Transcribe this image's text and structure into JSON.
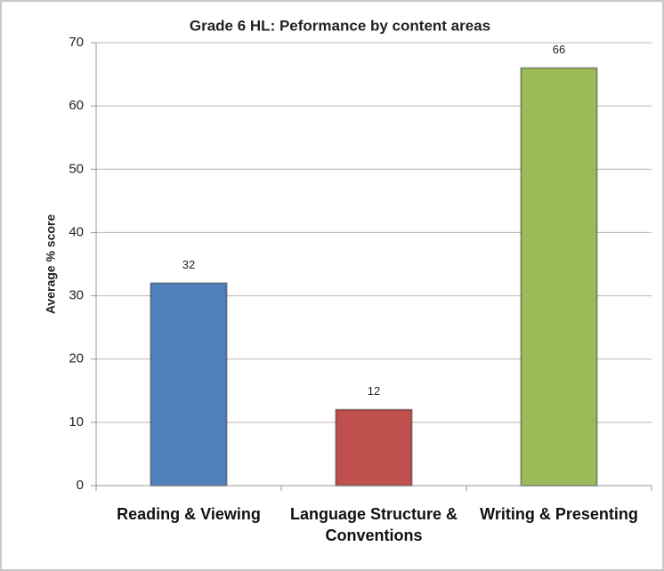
{
  "chart_data": {
    "type": "bar",
    "title": "Grade 6 HL: Peformance by content areas",
    "y_label": "Average % score",
    "categories": [
      "Reading & Viewing",
      "Language Structure & Conventions",
      "Writing & Presenting"
    ],
    "values": [
      32,
      12,
      66
    ],
    "colors": [
      "#4f81bd",
      "#c0504d",
      "#9bbb59"
    ],
    "ylim": [
      0,
      70
    ],
    "yticks": [
      0,
      10,
      20,
      30,
      40,
      50,
      60,
      70
    ],
    "grid": true
  }
}
